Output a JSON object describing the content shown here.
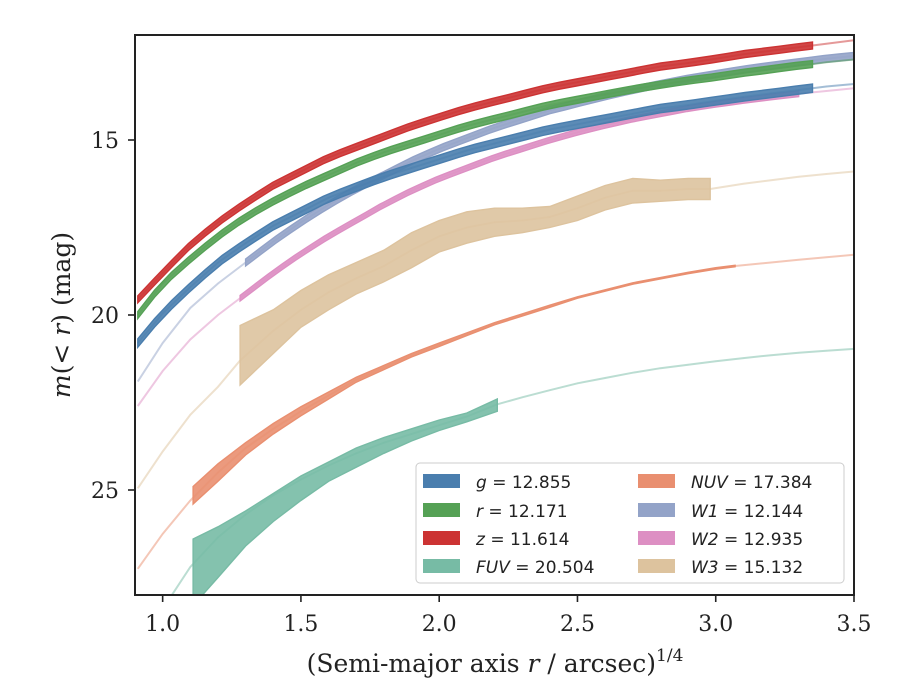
{
  "chart_data": {
    "type": "area",
    "xlabel": "(Semi-major axis r / arcsec)",
    "xlabel_parts": {
      "pre": "(Semi-major axis ",
      "var": "r",
      "post": " / arcsec)",
      "sup": "1/4"
    },
    "ylabel": "m(< r) (mag)",
    "ylabel_parts": {
      "var": "m",
      "open": "(",
      "lt": "< ",
      "r": "r",
      "close": ") (mag)"
    },
    "xlim": [
      0.9,
      3.5
    ],
    "ylim": [
      28,
      12.0
    ],
    "y_inverted": true,
    "xticks": [
      1.0,
      1.5,
      2.0,
      2.5,
      3.0,
      3.5
    ],
    "xtick_labels": [
      "1.0",
      "1.5",
      "2.0",
      "2.5",
      "3.0",
      "3.5"
    ],
    "yticks": [
      15,
      20,
      25
    ],
    "ytick_labels": [
      "15",
      "20",
      "25"
    ],
    "grid": false,
    "legend_position": "lower-right",
    "series": [
      {
        "name": "z = 11.614",
        "label_var": "z",
        "label_val": "= 11.614",
        "color": "#cc3333",
        "x": [
          0.91,
          1.0,
          1.1,
          1.2,
          1.3,
          1.4,
          1.5,
          1.6,
          1.7,
          1.8,
          1.9,
          2.0,
          2.1,
          2.2,
          2.3,
          2.4,
          2.5,
          2.6,
          2.7,
          2.8,
          2.9,
          3.0,
          3.1,
          3.2,
          3.3,
          3.35,
          3.4,
          3.5
        ],
        "y": [
          19.55,
          18.8,
          18.0,
          17.35,
          16.8,
          16.3,
          15.9,
          15.5,
          15.2,
          14.9,
          14.6,
          14.35,
          14.1,
          13.9,
          13.7,
          13.5,
          13.35,
          13.2,
          13.05,
          12.9,
          12.8,
          12.68,
          12.55,
          12.45,
          12.35,
          12.3,
          12.25,
          12.15
        ],
        "band": 0.1,
        "solid_until": 3.35
      },
      {
        "name": "r = 12.171",
        "label_var": "r",
        "label_val": "= 12.171",
        "color": "#55a155",
        "x": [
          0.91,
          1.0,
          1.1,
          1.2,
          1.3,
          1.4,
          1.5,
          1.6,
          1.7,
          1.8,
          1.9,
          2.0,
          2.1,
          2.2,
          2.3,
          2.4,
          2.5,
          2.6,
          2.7,
          2.8,
          2.9,
          3.0,
          3.1,
          3.2,
          3.3,
          3.35,
          3.4,
          3.5
        ],
        "y": [
          20.0,
          19.1,
          18.4,
          17.75,
          17.2,
          16.75,
          16.35,
          16.0,
          15.65,
          15.35,
          15.1,
          14.85,
          14.6,
          14.4,
          14.2,
          14.0,
          13.85,
          13.7,
          13.55,
          13.42,
          13.3,
          13.2,
          13.08,
          12.98,
          12.87,
          12.83,
          12.78,
          12.7
        ],
        "band": 0.1,
        "solid_until": 3.35
      },
      {
        "name": "g = 12.855",
        "label_var": "g",
        "label_val": "= 12.855",
        "color": "#4a7eae",
        "x": [
          0.91,
          1.0,
          1.1,
          1.2,
          1.3,
          1.4,
          1.5,
          1.6,
          1.7,
          1.8,
          1.9,
          2.0,
          2.1,
          2.2,
          2.3,
          2.4,
          2.5,
          2.6,
          2.7,
          2.8,
          2.9,
          3.0,
          3.1,
          3.2,
          3.3,
          3.35,
          3.4,
          3.5
        ],
        "y": [
          20.8,
          19.95,
          19.2,
          18.5,
          17.95,
          17.45,
          17.05,
          16.65,
          16.35,
          16.05,
          15.8,
          15.55,
          15.3,
          15.1,
          14.9,
          14.7,
          14.55,
          14.4,
          14.25,
          14.1,
          14.0,
          13.88,
          13.77,
          13.67,
          13.57,
          13.52,
          13.47,
          13.4
        ],
        "band": 0.12,
        "solid_until": 3.35
      },
      {
        "name": "W1 = 12.144",
        "label_var": "W1",
        "label_val": "= 12.144",
        "color": "#93a3c8",
        "x": [
          0.91,
          1.0,
          1.1,
          1.2,
          1.3,
          1.4,
          1.5,
          1.6,
          1.7,
          1.8,
          1.9,
          2.0,
          2.1,
          2.2,
          2.3,
          2.4,
          2.5,
          2.6,
          2.7,
          2.8,
          2.9,
          3.0,
          3.1,
          3.2,
          3.3,
          3.4,
          3.5
        ],
        "y": [
          21.9,
          20.8,
          19.8,
          19.1,
          18.5,
          17.9,
          17.35,
          16.85,
          16.4,
          16.0,
          15.6,
          15.25,
          14.95,
          14.65,
          14.4,
          14.15,
          13.95,
          13.75,
          13.57,
          13.4,
          13.25,
          13.12,
          12.99,
          12.88,
          12.78,
          12.68,
          12.6
        ],
        "band": 0.1,
        "solid_from": 1.3
      },
      {
        "name": "W2 = 12.935",
        "label_var": "W2",
        "label_val": "= 12.935",
        "color": "#dd8fc3",
        "x": [
          0.91,
          1.0,
          1.1,
          1.2,
          1.3,
          1.4,
          1.5,
          1.6,
          1.7,
          1.8,
          1.9,
          2.0,
          2.1,
          2.2,
          2.3,
          2.4,
          2.5,
          2.6,
          2.7,
          2.8,
          2.9,
          3.0,
          3.1,
          3.2,
          3.3,
          3.4,
          3.5
        ],
        "y": [
          22.6,
          21.6,
          20.7,
          20.0,
          19.4,
          18.8,
          18.25,
          17.75,
          17.3,
          16.85,
          16.45,
          16.1,
          15.8,
          15.5,
          15.25,
          15.0,
          14.78,
          14.58,
          14.4,
          14.25,
          14.1,
          13.98,
          13.87,
          13.77,
          13.68,
          13.6,
          13.52
        ],
        "band": 0.08,
        "solid_from": 1.28,
        "solid_until": 3.3
      },
      {
        "name": "W3 = 15.132",
        "label_var": "W3",
        "label_val": "= 15.132",
        "color": "#ddc39e",
        "x": [
          0.91,
          1.0,
          1.1,
          1.2,
          1.28,
          1.4,
          1.5,
          1.6,
          1.7,
          1.8,
          1.9,
          2.0,
          2.1,
          2.2,
          2.3,
          2.4,
          2.5,
          2.6,
          2.7,
          2.8,
          2.9,
          2.98,
          3.1,
          3.2,
          3.3,
          3.4,
          3.5
        ],
        "y": [
          24.95,
          23.9,
          22.85,
          22.05,
          21.3,
          20.45,
          19.85,
          19.35,
          18.95,
          18.6,
          18.15,
          17.75,
          17.5,
          17.35,
          17.3,
          17.2,
          16.95,
          16.65,
          16.45,
          16.45,
          16.4,
          16.4,
          16.25,
          16.15,
          16.05,
          15.97,
          15.9
        ],
        "band_x": [
          1.28,
          1.4,
          1.5,
          1.6,
          1.7,
          1.8,
          1.9,
          2.0,
          2.1,
          2.2,
          2.3,
          2.4,
          2.5,
          2.6,
          2.7,
          2.8,
          2.9,
          2.98
        ],
        "band_upper": [
          20.3,
          19.85,
          19.3,
          18.85,
          18.5,
          18.15,
          17.65,
          17.3,
          17.05,
          16.95,
          16.95,
          16.9,
          16.6,
          16.3,
          16.1,
          16.15,
          16.1,
          16.1
        ],
        "band_lower": [
          22.0,
          21.1,
          20.35,
          19.85,
          19.4,
          19.05,
          18.65,
          18.2,
          17.95,
          17.75,
          17.65,
          17.5,
          17.3,
          17.0,
          16.8,
          16.75,
          16.7,
          16.7
        ]
      },
      {
        "name": "NUV = 17.384",
        "label_var": "NUV",
        "label_val": "= 17.384",
        "color": "#e98f70",
        "x": [
          0.91,
          1.0,
          1.1,
          1.2,
          1.3,
          1.4,
          1.5,
          1.6,
          1.7,
          1.8,
          1.9,
          2.0,
          2.1,
          2.2,
          2.3,
          2.4,
          2.5,
          2.6,
          2.7,
          2.8,
          2.9,
          3.0,
          3.07,
          3.2,
          3.3,
          3.4,
          3.5
        ],
        "y": [
          27.25,
          26.25,
          25.3,
          24.5,
          23.8,
          23.25,
          22.75,
          22.3,
          21.85,
          21.5,
          21.15,
          20.85,
          20.55,
          20.25,
          20.0,
          19.75,
          19.5,
          19.3,
          19.1,
          18.95,
          18.8,
          18.67,
          18.6,
          18.5,
          18.42,
          18.35,
          18.28
        ],
        "band_x": [
          1.11,
          1.2,
          1.3,
          1.4,
          1.5,
          1.6,
          1.7,
          1.8,
          1.9,
          2.0,
          2.1,
          2.2,
          2.3,
          2.4,
          2.5,
          2.6,
          2.7,
          2.8,
          2.9,
          3.0,
          3.07
        ],
        "band_upper": [
          24.9,
          24.25,
          23.65,
          23.1,
          22.62,
          22.2,
          21.78,
          21.44,
          21.1,
          20.8,
          20.51,
          20.22,
          19.97,
          19.72,
          19.48,
          19.28,
          19.08,
          18.93,
          18.78,
          18.65,
          18.58
        ],
        "band_lower": [
          25.4,
          24.75,
          24.0,
          23.4,
          22.88,
          22.4,
          21.92,
          21.56,
          21.2,
          20.9,
          20.59,
          20.28,
          20.03,
          19.78,
          19.52,
          19.32,
          19.12,
          18.97,
          18.82,
          18.69,
          18.62
        ]
      },
      {
        "name": "FUV = 20.504",
        "label_var": "FUV",
        "label_val": "= 20.504",
        "color": "#77bba5",
        "x": [
          1.0,
          1.1,
          1.2,
          1.3,
          1.4,
          1.5,
          1.6,
          1.7,
          1.8,
          1.9,
          2.0,
          2.1,
          2.21,
          2.3,
          2.4,
          2.5,
          2.6,
          2.7,
          2.8,
          2.9,
          3.0,
          3.1,
          3.2,
          3.3,
          3.4,
          3.5
        ],
        "y": [
          28.4,
          27.2,
          26.35,
          25.7,
          25.15,
          24.7,
          24.3,
          23.95,
          23.65,
          23.4,
          23.15,
          22.9,
          22.55,
          22.35,
          22.15,
          21.95,
          21.8,
          21.65,
          21.52,
          21.42,
          21.32,
          21.23,
          21.15,
          21.08,
          21.02,
          20.97
        ],
        "band_x": [
          1.11,
          1.2,
          1.3,
          1.4,
          1.5,
          1.6,
          1.7,
          1.8,
          1.9,
          2.0,
          2.1,
          2.21
        ],
        "band_upper": [
          26.4,
          26.05,
          25.6,
          25.1,
          24.6,
          24.2,
          23.8,
          23.5,
          23.25,
          23.0,
          22.8,
          22.4
        ],
        "band_lower": [
          28.3,
          27.5,
          26.6,
          25.9,
          25.3,
          24.75,
          24.35,
          23.95,
          23.6,
          23.3,
          23.05,
          22.75
        ]
      }
    ],
    "legend_columns": [
      [
        "g = 12.855",
        "r = 12.171",
        "z = 11.614",
        "FUV = 20.504"
      ],
      [
        "NUV = 17.384",
        "W1 = 12.144",
        "W2 = 12.935",
        "W3 = 15.132"
      ]
    ]
  }
}
